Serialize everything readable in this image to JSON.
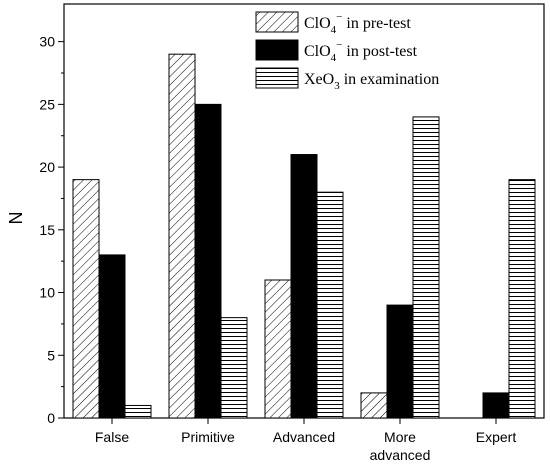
{
  "chart_data": {
    "type": "bar",
    "title": "",
    "xlabel": "",
    "ylabel": "N",
    "ylim": [
      0,
      33
    ],
    "yticks": [
      0,
      5,
      10,
      15,
      20,
      25,
      30
    ],
    "grid": false,
    "legend_position": "top-right",
    "categories": [
      [
        "False"
      ],
      [
        "Primitive"
      ],
      [
        "Advanced"
      ],
      [
        "More",
        "advanced"
      ],
      [
        "Expert"
      ]
    ],
    "series": [
      {
        "name": "ClO4− in pre-test",
        "label_base": "ClO",
        "label_sub": "4",
        "label_sup": "−",
        "label_rest": " in pre-test",
        "pattern": "diagonal-hatch",
        "values": [
          19,
          29,
          11,
          2,
          0
        ]
      },
      {
        "name": "ClO4− in post-test",
        "label_base": "ClO",
        "label_sub": "4",
        "label_sup": "−",
        "label_rest": " in post-test",
        "pattern": "solid-black",
        "values": [
          13,
          25,
          21,
          9,
          2
        ]
      },
      {
        "name": "XeO3 in examination",
        "label_base": "XeO",
        "label_sub": "3",
        "label_sup": "",
        "label_rest": " in examination",
        "pattern": "horizontal-lines",
        "values": [
          1,
          8,
          18,
          24,
          19
        ]
      }
    ],
    "colors": {
      "outline": "#000000",
      "fill_solid": "#000000",
      "background": "#ffffff"
    }
  }
}
